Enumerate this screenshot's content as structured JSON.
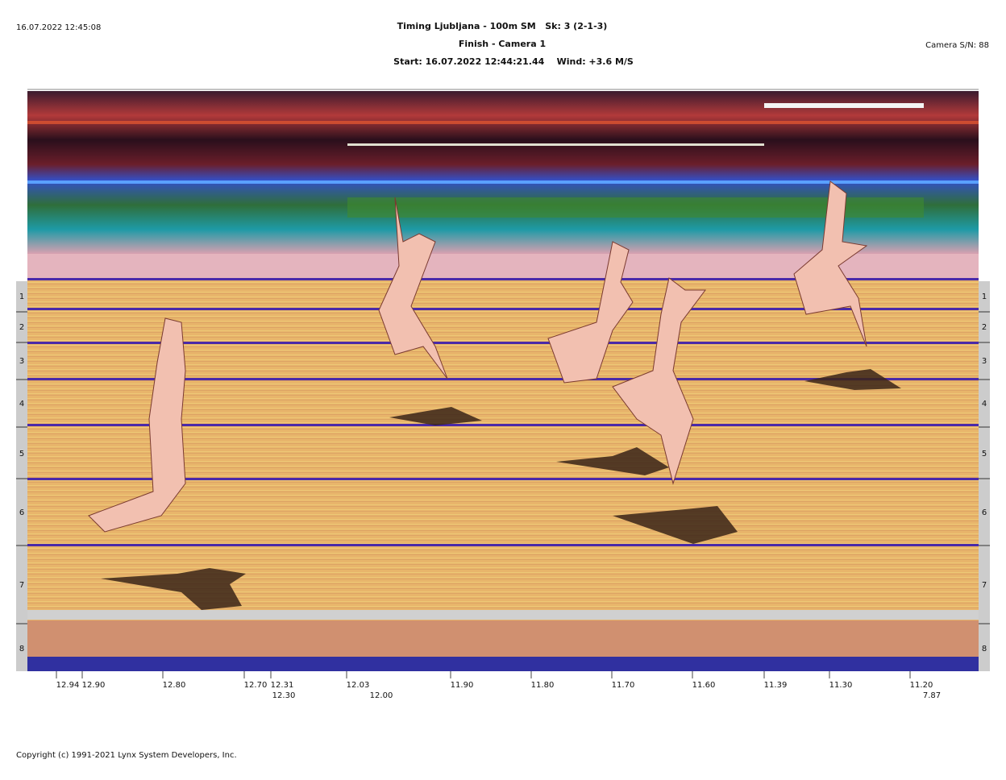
{
  "header": {
    "printed_at": "16.07.2022 12:45:08",
    "title_lines": [
      "Timing Ljubljana - 100m SM   Sk: 3 (2-1-3)",
      "Finish - Camera 1",
      "Start: 16.07.2022 12:44:21.44    Wind: +3.6 M/S"
    ],
    "camera": "Camera S/N: 88"
  },
  "lanes": [
    "1",
    "2",
    "3",
    "4",
    "5",
    "6",
    "7",
    "8"
  ],
  "time_labels": [
    "12.94",
    "12.90",
    "12.80",
    "12.70",
    "12.31",
    "12.03",
    "11.90",
    "11.80",
    "11.70",
    "11.60",
    "11.39",
    "11.30",
    "11.20"
  ],
  "time_labels_second_row": [
    "12.30",
    "12.00",
    "7.87"
  ],
  "footer": {
    "copyright": "Copyright (c) 1991-2021 Lynx System Developers, Inc."
  }
}
